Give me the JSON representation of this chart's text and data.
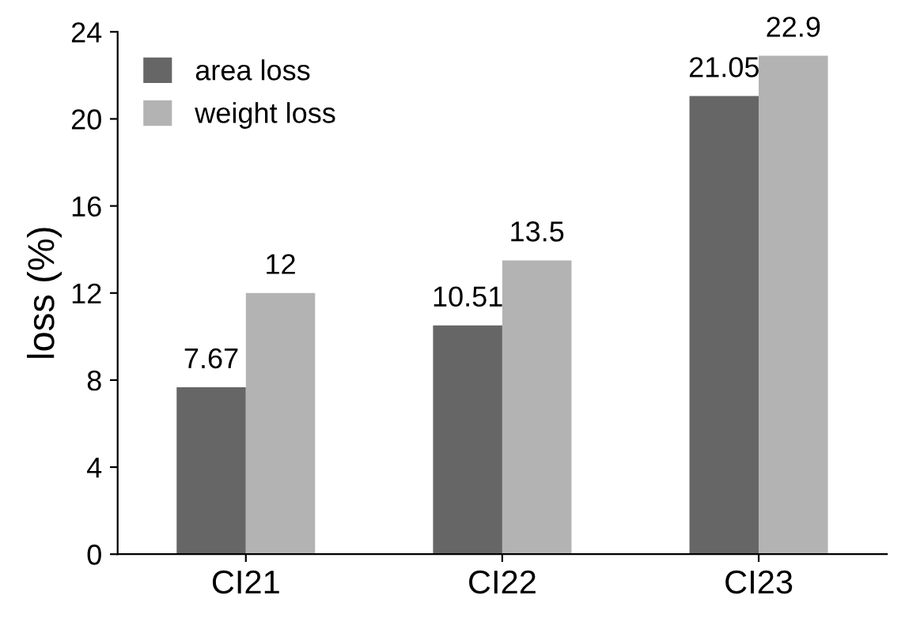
{
  "chart_data": {
    "type": "bar",
    "ylabel": "loss (%)",
    "categories": [
      "CI21",
      "CI22",
      "CI23"
    ],
    "series": [
      {
        "name": "area loss",
        "color": "#666666",
        "values": [
          7.67,
          10.51,
          21.05
        ]
      },
      {
        "name": "weight loss",
        "color": "#b3b3b3",
        "values": [
          12,
          13.5,
          22.9
        ]
      }
    ],
    "ylim": [
      0,
      24
    ],
    "yticks": [
      0,
      4,
      8,
      12,
      16,
      20,
      24
    ],
    "grid": false,
    "legend": "top left",
    "data_labels": true
  }
}
